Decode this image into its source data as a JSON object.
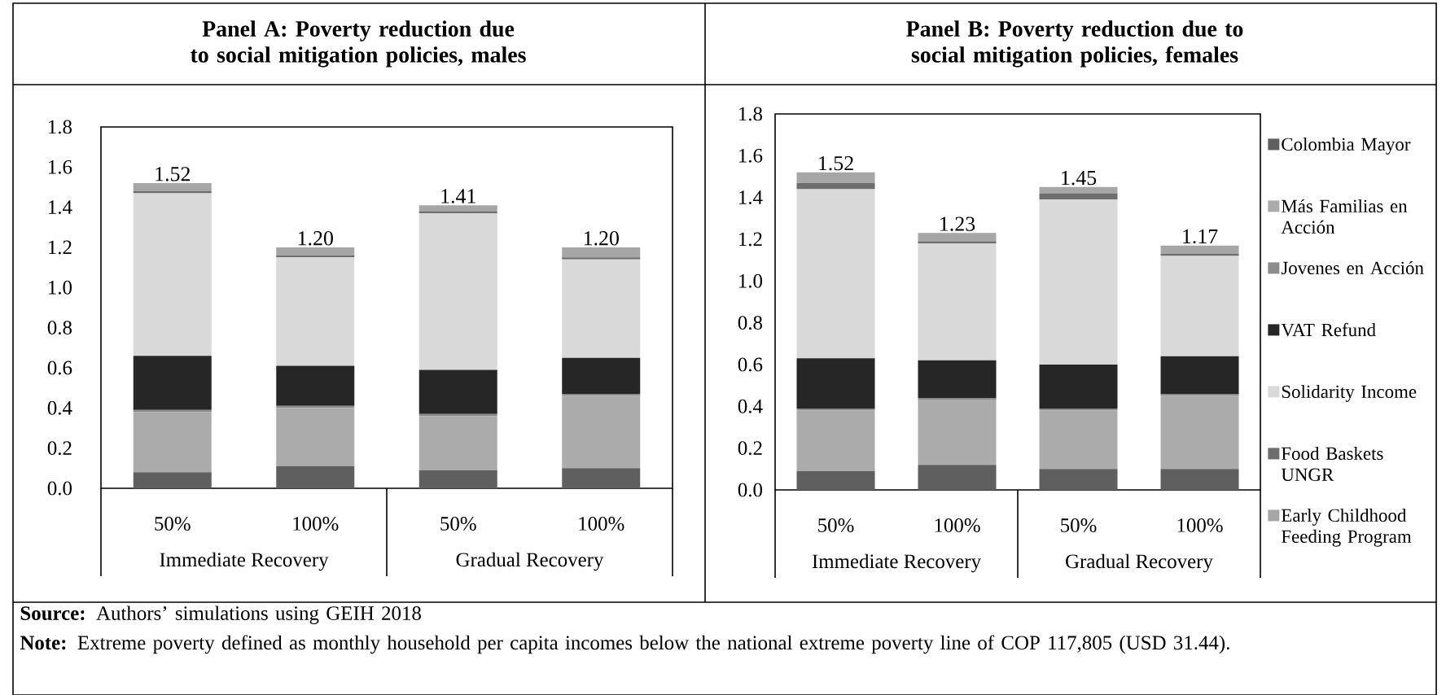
{
  "chart_data": [
    {
      "type": "bar",
      "stacked": true,
      "title": "Panel A: Poverty reduction due to social mitigation policies, males",
      "categories": [
        "50%",
        "100%",
        "50%",
        "100%"
      ],
      "ylim": [
        0,
        1.8
      ],
      "yticks": [
        {
          "value": 0,
          "label": "0.0"
        },
        {
          "value": 0.2,
          "label": "0.2"
        },
        {
          "value": 0.4,
          "label": "0.4"
        },
        {
          "value": 0.6,
          "label": "0.6"
        },
        {
          "value": 0.8,
          "label": "0.8"
        },
        {
          "value": 1.0,
          "label": "1.0"
        },
        {
          "value": 1.2,
          "label": "1.2"
        },
        {
          "value": 1.4,
          "label": "1.4"
        },
        {
          "value": 1.6,
          "label": "1.6"
        },
        {
          "value": 1.8,
          "label": "1.8"
        }
      ],
      "grid": false,
      "legend": false,
      "series": [
        {
          "color": "#5f5f5f",
          "values": [
            0.08,
            0.11,
            0.09,
            0.1
          ]
        },
        {
          "color": "#ababab",
          "values": [
            0.3,
            0.29,
            0.27,
            0.36
          ]
        },
        {
          "color": "#8c8c8c",
          "values": [
            0.01,
            0.01,
            0.01,
            0.01
          ]
        },
        {
          "color": "#262626",
          "values": [
            0.27,
            0.2,
            0.22,
            0.18
          ]
        },
        {
          "color": "#d9d9d9",
          "values": [
            0.81,
            0.54,
            0.78,
            0.49
          ]
        },
        {
          "color": "#6e6e6e",
          "values": [
            0.01,
            0.01,
            0.01,
            0.01
          ]
        },
        {
          "color": "#a6a6a6",
          "values": [
            0.04,
            0.04,
            0.03,
            0.05
          ]
        }
      ],
      "totals": [
        "1.52",
        "1.20",
        "1.41",
        "1.20"
      ],
      "annotations": [
        "Immediate Recovery",
        "Gradual Recovery"
      ]
    },
    {
      "type": "bar",
      "stacked": true,
      "title": "Panel B: Poverty reduction due to social mitigation policies, females",
      "categories": [
        "50%",
        "100%",
        "50%",
        "100%"
      ],
      "ylim": [
        0,
        1.8
      ],
      "yticks": [
        {
          "value": 0,
          "label": "0.0"
        },
        {
          "value": 0.2,
          "label": "0.2"
        },
        {
          "value": 0.4,
          "label": "0.4"
        },
        {
          "value": 0.6,
          "label": "0.6"
        },
        {
          "value": 0.8,
          "label": "0.8"
        },
        {
          "value": 1.0,
          "label": "1.0"
        },
        {
          "value": 1.2,
          "label": "1.2"
        },
        {
          "value": 1.4,
          "label": "1.4"
        },
        {
          "value": 1.6,
          "label": "1.6"
        },
        {
          "value": 1.8,
          "label": "1.8"
        }
      ],
      "grid": false,
      "legend": "right",
      "series": [
        {
          "name": "Colombia Mayor",
          "color": "#5f5f5f",
          "values": [
            0.09,
            0.12,
            0.1,
            0.1
          ]
        },
        {
          "name": "Más Familias en Acción",
          "color": "#ababab",
          "values": [
            0.29,
            0.31,
            0.28,
            0.35
          ]
        },
        {
          "name": "Jovenes en Acción",
          "color": "#8c8c8c",
          "values": [
            0.01,
            0.01,
            0.01,
            0.01
          ]
        },
        {
          "name": "VAT Refund",
          "color": "#262626",
          "values": [
            0.24,
            0.18,
            0.21,
            0.18
          ]
        },
        {
          "name": "Solidarity Income",
          "color": "#d9d9d9",
          "values": [
            0.81,
            0.56,
            0.79,
            0.48
          ]
        },
        {
          "name": "Food Baskets UNGR",
          "color": "#6e6e6e",
          "values": [
            0.03,
            0.01,
            0.03,
            0.01
          ]
        },
        {
          "name": "Early Childhood Feeding Program",
          "color": "#a6a6a6",
          "values": [
            0.05,
            0.04,
            0.03,
            0.04
          ]
        }
      ],
      "totals": [
        "1.52",
        "1.23",
        "1.45",
        "1.17"
      ],
      "annotations": [
        "Immediate Recovery",
        "Gradual Recovery",
        "**Source:** Authors’ simulations using GEIH 2018",
        "**Note:** Extreme poverty defined as monthly household per capita incomes below the national extreme poverty line of COP 117,805 (USD 31.44)."
      ]
    }
  ]
}
